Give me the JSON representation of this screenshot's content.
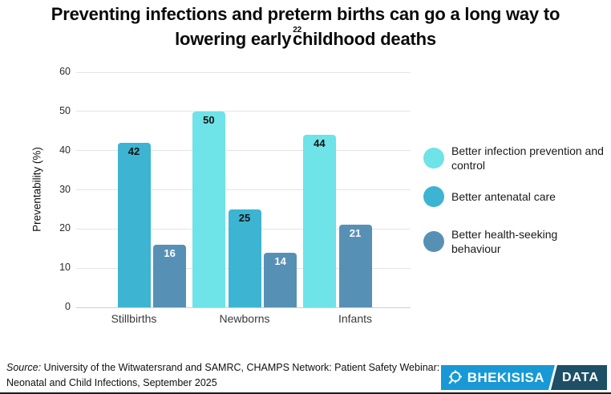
{
  "title": {
    "line1": "Preventing infections and preterm births can go a long way to",
    "line2_prefix": "lowering early",
    "footnote_marker": "22",
    "line2_suffix": "childhood deaths"
  },
  "chart_data": {
    "type": "bar",
    "title": "Preventing infections and preterm births can go a long way to lowering early childhood deaths",
    "xlabel": "",
    "ylabel": "Preventability (%)",
    "ylim": [
      0,
      60
    ],
    "yticks": [
      0,
      10,
      20,
      30,
      40,
      50,
      60
    ],
    "grid": true,
    "legend_position": "right",
    "categories": [
      "Stillbirths",
      "Newborns",
      "Infants"
    ],
    "series": [
      {
        "name": "Better infection prevention and control",
        "color": "#6ee3e8",
        "label_color": "#111111",
        "values": [
          null,
          50,
          44
        ]
      },
      {
        "name": "Better antenatal care",
        "color": "#3cb4d2",
        "label_color": "#111111",
        "values": [
          42,
          25,
          null
        ]
      },
      {
        "name": "Better health-seeking behaviour",
        "color": "#5790b5",
        "label_color": "#ffffff",
        "values": [
          16,
          14,
          21
        ]
      }
    ]
  },
  "footer": {
    "source_label": "Source:",
    "source_text": "University of the Witwatersrand and SAMRC, CHAMPS Network: Patient Safety Webinar: Neonatal and Child Infections, September 2025"
  },
  "logo": {
    "brand": "BHEKISISA",
    "suffix": "DATA",
    "icon": "crosshair-magnifier-icon",
    "brand_color": "#1899d6",
    "suffix_bg": "#1d4f66"
  }
}
